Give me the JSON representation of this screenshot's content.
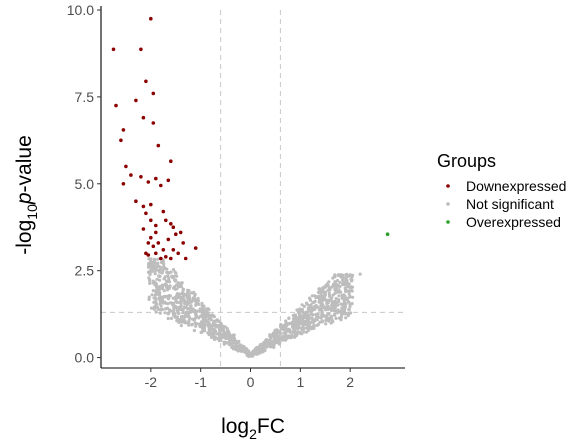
{
  "chart_data": {
    "type": "scatter",
    "title": "",
    "xlabel": {
      "base": "log",
      "sub": "2",
      "rest": "FC"
    },
    "ylabel": {
      "prefix": "-log",
      "sub": "10",
      "italic": "p",
      "rest": "-value"
    },
    "xlim": [
      -3.0,
      3.1
    ],
    "ylim": [
      -0.3,
      10.0
    ],
    "x_ticks": [
      -2,
      -1,
      0,
      1,
      2
    ],
    "x_tick_labels": [
      "-2",
      "-1",
      "0",
      "1",
      "2"
    ],
    "y_ticks": [
      0.0,
      2.5,
      5.0,
      7.5,
      10.0
    ],
    "y_tick_labels": [
      "0.0",
      "2.5",
      "5.0",
      "7.5",
      "10.0"
    ],
    "grid": false,
    "thresholds": {
      "logfc": [
        -0.6,
        0.6
      ],
      "neglog10p": 1.3
    },
    "legend": {
      "title": "Groups",
      "position": "right",
      "entries": [
        "Downexpressed",
        "Not significant",
        "Overexpressed"
      ]
    },
    "colors": {
      "Downexpressed": "#8b0000",
      "Not significant": "#bdbdbd",
      "Overexpressed": "#2ca02c",
      "threshold_line": "#c8c8c8"
    },
    "series": [
      {
        "name": "Downexpressed",
        "points": [
          [
            -2.0,
            9.75
          ],
          [
            -2.75,
            8.87
          ],
          [
            -2.2,
            8.87
          ],
          [
            -2.1,
            7.95
          ],
          [
            -1.95,
            7.6
          ],
          [
            -2.7,
            7.25
          ],
          [
            -2.3,
            7.4
          ],
          [
            -2.15,
            6.9
          ],
          [
            -2.55,
            6.55
          ],
          [
            -2.6,
            6.25
          ],
          [
            -1.95,
            6.75
          ],
          [
            -1.85,
            6.1
          ],
          [
            -1.6,
            5.65
          ],
          [
            -2.5,
            5.5
          ],
          [
            -2.4,
            5.25
          ],
          [
            -2.2,
            5.2
          ],
          [
            -2.05,
            5.05
          ],
          [
            -1.9,
            5.15
          ],
          [
            -1.65,
            5.1
          ],
          [
            -1.8,
            4.95
          ],
          [
            -2.55,
            5.0
          ],
          [
            -2.3,
            4.5
          ],
          [
            -2.15,
            4.35
          ],
          [
            -2.0,
            4.4
          ],
          [
            -2.1,
            4.15
          ],
          [
            -2.0,
            3.95
          ],
          [
            -1.9,
            3.8
          ],
          [
            -1.75,
            4.2
          ],
          [
            -1.7,
            3.95
          ],
          [
            -1.6,
            3.85
          ],
          [
            -2.15,
            3.7
          ],
          [
            -1.9,
            3.6
          ],
          [
            -1.55,
            3.75
          ],
          [
            -1.5,
            3.55
          ],
          [
            -1.65,
            3.4
          ],
          [
            -2.0,
            3.45
          ],
          [
            -1.85,
            3.3
          ],
          [
            -1.75,
            3.1
          ],
          [
            -1.9,
            3.0
          ],
          [
            -2.05,
            2.95
          ],
          [
            -1.95,
            3.2
          ],
          [
            -1.7,
            2.9
          ],
          [
            -1.55,
            3.1
          ],
          [
            -1.45,
            3.0
          ],
          [
            -1.3,
            2.85
          ],
          [
            -1.35,
            3.3
          ],
          [
            -1.1,
            3.15
          ],
          [
            -1.6,
            2.85
          ],
          [
            -1.8,
            2.85
          ],
          [
            -2.1,
            3.0
          ],
          [
            -1.4,
            3.6
          ],
          [
            -2.05,
            3.3
          ]
        ]
      },
      {
        "name": "Overexpressed",
        "points": [
          [
            2.75,
            3.55
          ]
        ]
      }
    ]
  }
}
